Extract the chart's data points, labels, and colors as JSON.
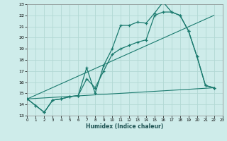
{
  "xlabel": "Humidex (Indice chaleur)",
  "xlim": [
    0,
    23
  ],
  "ylim": [
    13,
    23
  ],
  "yticks": [
    13,
    14,
    15,
    16,
    17,
    18,
    19,
    20,
    21,
    22,
    23
  ],
  "xticks": [
    0,
    1,
    2,
    3,
    4,
    5,
    6,
    7,
    8,
    9,
    10,
    11,
    12,
    13,
    14,
    15,
    16,
    17,
    18,
    19,
    20,
    21,
    22,
    23
  ],
  "background_color": "#ceecea",
  "grid_color": "#b2d8d4",
  "line_color": "#1a7a6e",
  "line1_x": [
    0,
    1,
    2,
    3,
    4,
    5,
    6,
    7,
    8,
    9,
    10,
    11,
    12,
    13,
    14,
    15,
    16,
    17,
    18,
    19,
    20,
    21,
    22
  ],
  "line1_y": [
    14.5,
    13.9,
    13.3,
    14.4,
    14.5,
    14.7,
    14.8,
    17.3,
    15.0,
    17.5,
    19.0,
    21.1,
    21.1,
    21.4,
    21.3,
    22.2,
    23.2,
    22.3,
    22.0,
    20.6,
    18.3,
    15.7,
    15.5
  ],
  "line2_x": [
    0,
    1,
    2,
    3,
    4,
    5,
    6,
    7,
    8,
    9,
    10,
    11,
    12,
    13,
    14,
    15,
    16,
    17,
    18,
    19,
    20,
    21,
    22
  ],
  "line2_y": [
    14.5,
    13.9,
    13.3,
    14.4,
    14.5,
    14.7,
    14.8,
    16.3,
    15.5,
    17.0,
    18.5,
    19.0,
    19.3,
    19.6,
    19.8,
    22.0,
    22.3,
    22.3,
    22.0,
    20.6,
    18.3,
    15.7,
    15.5
  ],
  "line3_x": [
    0,
    22
  ],
  "line3_y": [
    14.5,
    15.5
  ],
  "line4_x": [
    0,
    22
  ],
  "line4_y": [
    14.5,
    22.0
  ]
}
